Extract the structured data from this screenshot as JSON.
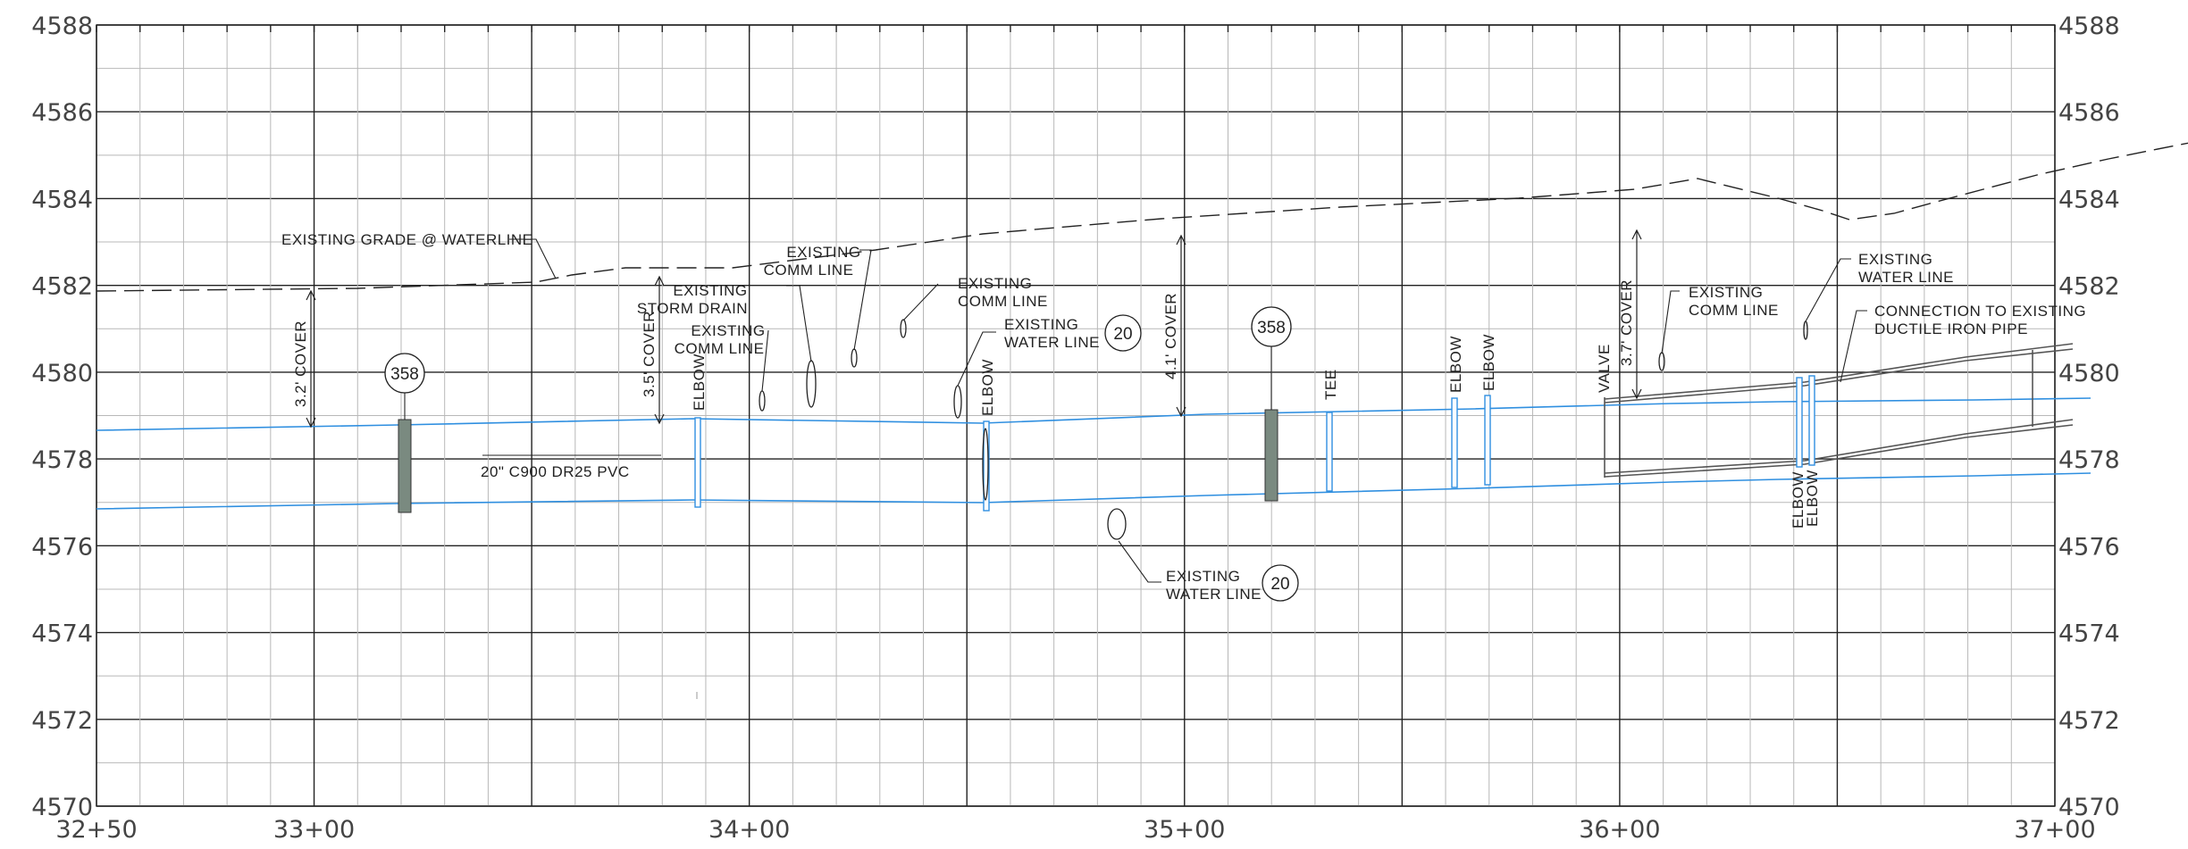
{
  "profile": {
    "elevation_labels": [
      "4588",
      "4586",
      "4584",
      "4582",
      "4580",
      "4578",
      "4576",
      "4574",
      "4572",
      "4570"
    ],
    "station_labels": [
      "32+50",
      "33+00",
      "34+00",
      "35+00",
      "36+00",
      "37+00"
    ],
    "elevation_range": [
      4570,
      4588
    ],
    "station_range": [
      3250,
      3700
    ]
  },
  "pipe": {
    "label": "20\" C900 DR25 PVC",
    "color": "#2f8fe0"
  },
  "grade": {
    "label": "EXISTING GRADE @ WATERLINE"
  },
  "covers": [
    {
      "label": "3.2' COVER"
    },
    {
      "label": "3.5' COVER"
    },
    {
      "label": "4.1' COVER"
    },
    {
      "label": "3.7' COVER"
    }
  ],
  "bubbles": {
    "b358_1": "358",
    "b358_2": "358",
    "b20_1": "20",
    "b20_2": "20"
  },
  "fittings": {
    "elbow1": "ELBOW",
    "elbow2": "ELBOW",
    "tee": "TEE",
    "elbow3": "ELBOW",
    "elbow4": "ELBOW",
    "valve": "VALVE",
    "elbow5": "ELBOW",
    "elbow6": "ELBOW"
  },
  "callouts": {
    "storm_drain": [
      "EXISTING",
      "STORM DRAIN"
    ],
    "comm1": [
      "EXISTING",
      "COMM LINE"
    ],
    "comm2": [
      "EXISTING",
      "COMM LINE"
    ],
    "comm3": [
      "EXISTING",
      "COMM LINE"
    ],
    "water1": [
      "EXISTING",
      "WATER LINE"
    ],
    "water2": [
      "EXISTING",
      "WATER LINE"
    ],
    "comm4": [
      "EXISTING",
      "COMM LINE"
    ],
    "water3": [
      "EXISTING",
      "WATER LINE"
    ],
    "connection": [
      "CONNECTION TO EXISTING",
      "DUCTILE IRON PIPE"
    ]
  }
}
